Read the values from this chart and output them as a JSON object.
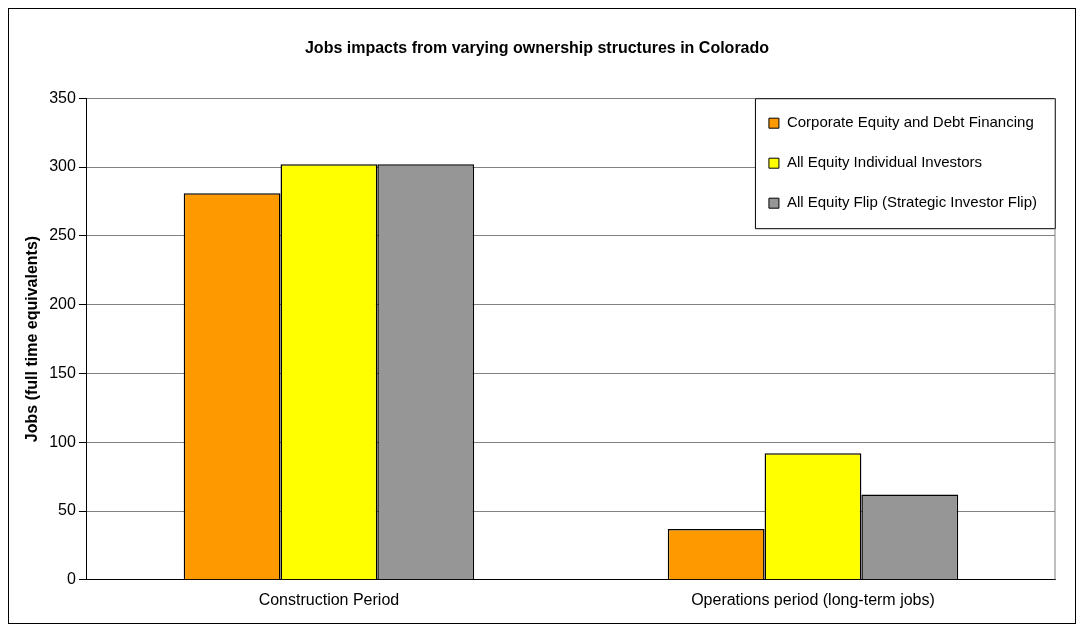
{
  "chart_data": {
    "type": "bar",
    "title": "Jobs impacts from varying ownership structures in Colorado",
    "ylabel": "Jobs (full time equivalents)",
    "categories": [
      "Construction Period",
      "Operations period (long-term jobs)"
    ],
    "series": [
      {
        "name": "Corporate Equity and Debt Financing",
        "color": "#ff9900",
        "values": [
          281,
          37
        ]
      },
      {
        "name": "All Equity Individual Investors",
        "color": "#ffff00",
        "values": [
          302,
          92
        ]
      },
      {
        "name": "All Equity Flip (Strategic Investor Flip)",
        "color": "#969696",
        "values": [
          302,
          62
        ]
      }
    ],
    "ylim": [
      0,
      350
    ],
    "yticks": [
      0,
      50,
      100,
      150,
      200,
      250,
      300,
      350
    ],
    "grid": "y",
    "legend": "top right"
  }
}
